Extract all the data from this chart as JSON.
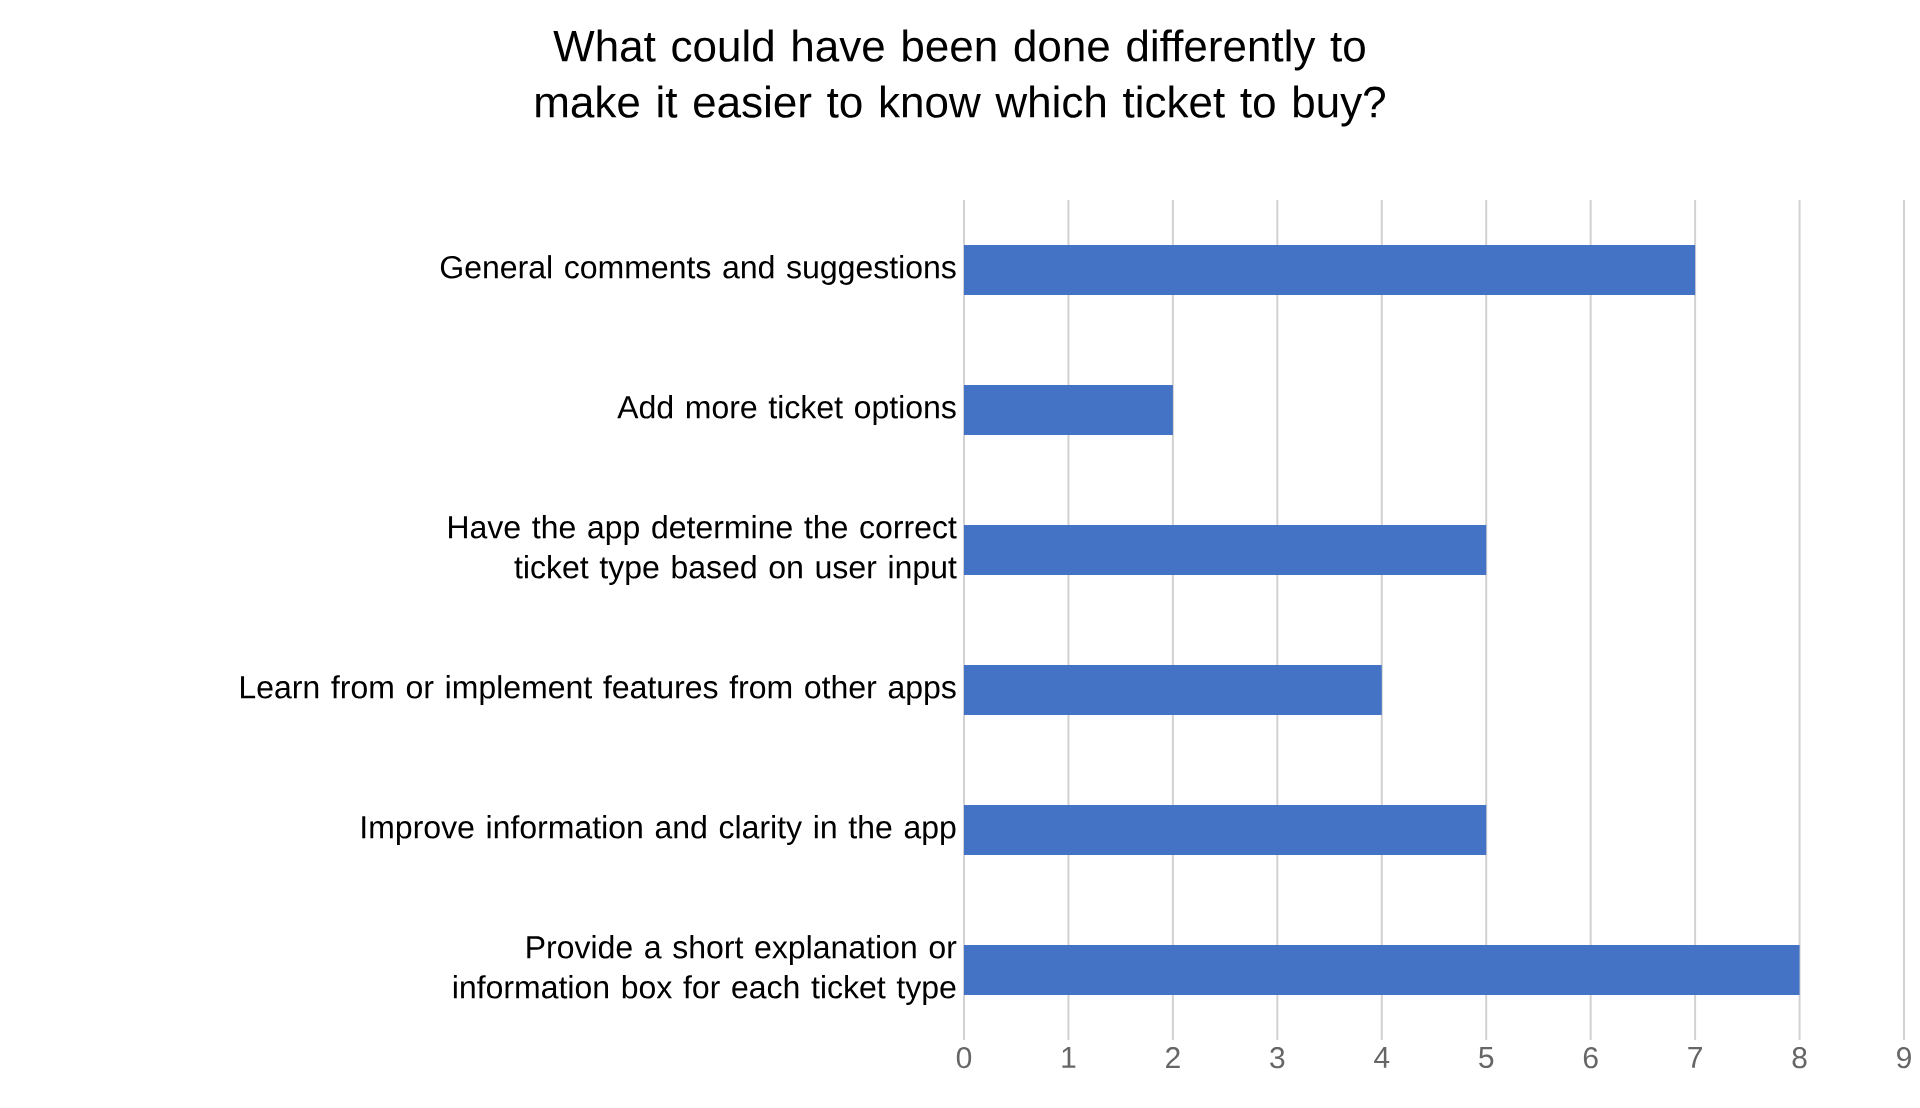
{
  "chart_data": {
    "type": "bar",
    "orientation": "horizontal",
    "title": "What could have been done differently to make it easier to know which ticket to buy?",
    "categories": [
      "General comments and suggestions",
      "Add more ticket options",
      "Have the app determine the correct ticket type based on user input",
      "Learn from or implement features from other apps",
      "Improve information and clarity in the app",
      "Provide a short explanation or information box for each ticket type"
    ],
    "values": [
      7,
      2,
      5,
      4,
      5,
      8
    ],
    "color": "#4472c4",
    "xlim": [
      0,
      9
    ],
    "xticks": [
      0,
      1,
      2,
      3,
      4,
      5,
      6,
      7,
      8,
      9
    ],
    "grid": "x"
  }
}
